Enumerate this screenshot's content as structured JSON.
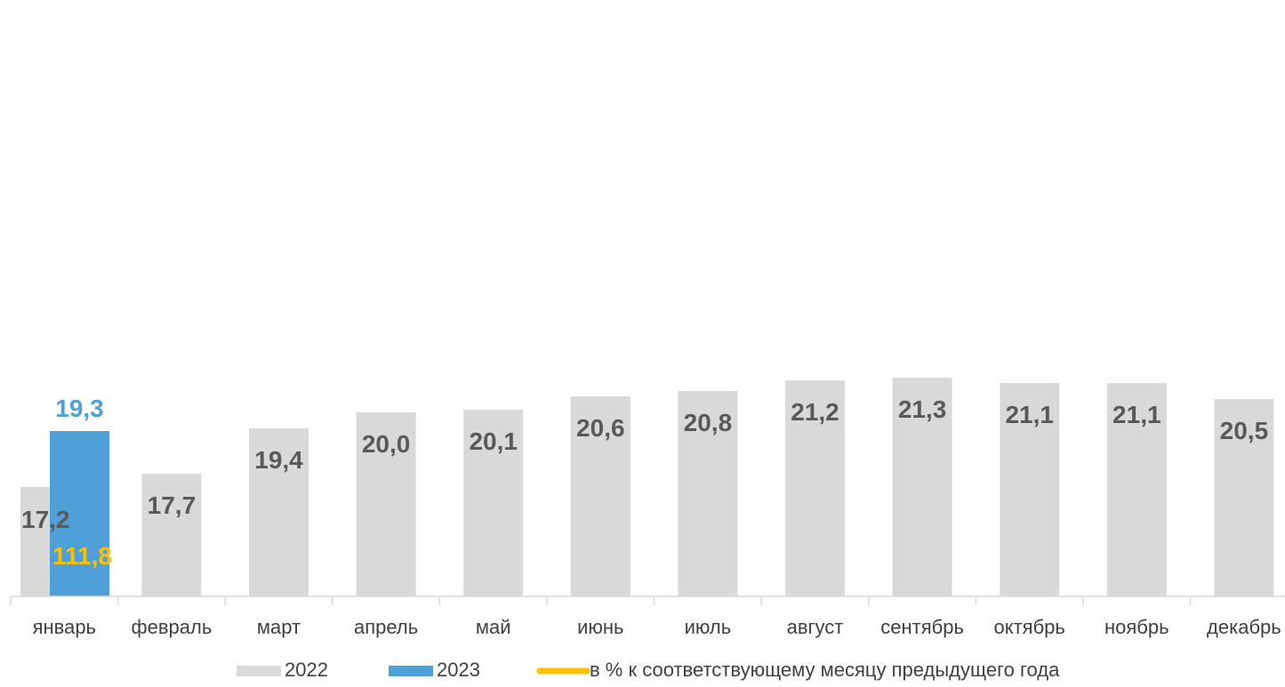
{
  "chart_data": {
    "type": "bar",
    "categories": [
      "январь",
      "февраль",
      "март",
      "апрель",
      "май",
      "июнь",
      "июль",
      "август",
      "сентябрь",
      "октябрь",
      "ноябрь",
      "декабрь"
    ],
    "series": [
      {
        "name": "2022",
        "values": [
          17.2,
          17.7,
          19.4,
          20.0,
          20.1,
          20.6,
          20.8,
          21.2,
          21.3,
          21.1,
          21.1,
          20.5
        ],
        "labels": [
          "17,2",
          "17,7",
          "19,4",
          "20,0",
          "20,1",
          "20,6",
          "20,8",
          "21,2",
          "21,3",
          "21,1",
          "21,1",
          "20,5"
        ],
        "color": "#d9d9d9",
        "label_color": "#595959"
      },
      {
        "name": "2023",
        "values": [
          19.3,
          null,
          null,
          null,
          null,
          null,
          null,
          null,
          null,
          null,
          null,
          null
        ],
        "labels": [
          "19,3",
          "",
          "",
          "",
          "",
          "",
          "",
          "",
          "",
          "",
          "",
          ""
        ],
        "color": "#4f9fd8",
        "label_color": "#4f9fd8"
      },
      {
        "name": "в % к соответствующему месяцу предыдущего года",
        "type": "line",
        "values": [
          111.8,
          null,
          null,
          null,
          null,
          null,
          null,
          null,
          null,
          null,
          null,
          null
        ],
        "labels": [
          "111,8",
          "",
          "",
          "",
          "",
          "",
          "",
          "",
          "",
          "",
          "",
          ""
        ],
        "color": "#ffc000"
      }
    ],
    "legend_position": "bottom",
    "grid": false
  }
}
